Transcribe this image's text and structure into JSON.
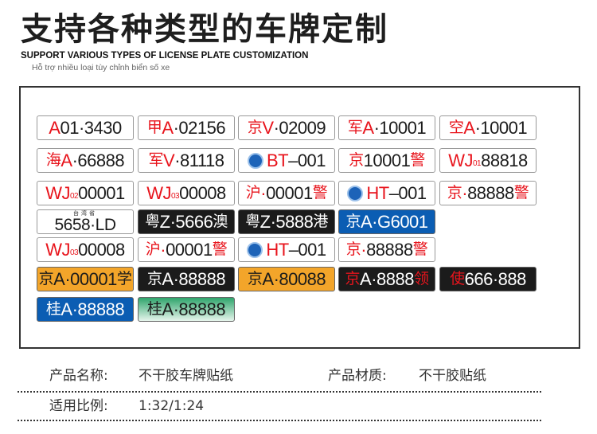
{
  "header": {
    "title": "支持各种类型的车牌定制",
    "subtitle": "SUPPORT VARIOUS TYPES OF LICENSE PLATE CUSTOMIZATION",
    "vietnamese": "Hỗ trợ nhiều loại tùy chỉnh biển số xe"
  },
  "colors": {
    "red": "#e8141c",
    "blue": "#0b5db3",
    "yellow": "#f3a52a",
    "black": "#1b1b1b",
    "white": "#ffffff",
    "green": "#2fa56c"
  },
  "plates": [
    {
      "row": 0,
      "col": 0,
      "bg": "white",
      "fg": "black",
      "seg": [
        [
          "A",
          "r"
        ],
        [
          "01·3430",
          ""
        ]
      ]
    },
    {
      "row": 0,
      "col": 1,
      "bg": "white",
      "fg": "black",
      "seg": [
        [
          "甲",
          "rc"
        ],
        [
          "A",
          "r"
        ],
        [
          "·02156",
          ""
        ]
      ]
    },
    {
      "row": 0,
      "col": 2,
      "bg": "white",
      "fg": "black",
      "seg": [
        [
          "京",
          "rc"
        ],
        [
          "V",
          "r"
        ],
        [
          "·02009",
          ""
        ]
      ]
    },
    {
      "row": 0,
      "col": 3,
      "bg": "white",
      "fg": "black",
      "seg": [
        [
          "军",
          "rc"
        ],
        [
          "A",
          "r"
        ],
        [
          "·10001",
          ""
        ]
      ]
    },
    {
      "row": 0,
      "col": 4,
      "bg": "white",
      "fg": "black",
      "seg": [
        [
          "空",
          "rc"
        ],
        [
          "A",
          "r"
        ],
        [
          "·10001",
          ""
        ]
      ]
    },
    {
      "row": 1,
      "col": 0,
      "bg": "white",
      "fg": "black",
      "seg": [
        [
          "海",
          "rc"
        ],
        [
          "A",
          "r"
        ],
        [
          "·66888",
          ""
        ]
      ]
    },
    {
      "row": 1,
      "col": 1,
      "bg": "white",
      "fg": "black",
      "seg": [
        [
          "军",
          "rc"
        ],
        [
          "V",
          "r"
        ],
        [
          "·81118",
          ""
        ]
      ]
    },
    {
      "row": 1,
      "col": 2,
      "bg": "white",
      "fg": "black",
      "emblem": true,
      "seg": [
        [
          "BT",
          "r"
        ],
        [
          "–001",
          ""
        ]
      ]
    },
    {
      "row": 1,
      "col": 3,
      "bg": "white",
      "fg": "black",
      "seg": [
        [
          "京",
          "rc"
        ],
        [
          "10001",
          ""
        ],
        [
          "警",
          "rc"
        ]
      ]
    },
    {
      "row": 1,
      "col": 4,
      "bg": "white",
      "fg": "black",
      "seg": [
        [
          "WJ",
          "r"
        ],
        [
          "01",
          "rs"
        ],
        [
          "88818",
          ""
        ]
      ]
    },
    {
      "row": 2,
      "col": 0,
      "bg": "white",
      "fg": "black",
      "seg": [
        [
          "WJ",
          "r"
        ],
        [
          "02",
          "rs"
        ],
        [
          "00001",
          ""
        ]
      ]
    },
    {
      "row": 2,
      "col": 1,
      "bg": "white",
      "fg": "black",
      "seg": [
        [
          "WJ",
          "r"
        ],
        [
          "03",
          "rs"
        ],
        [
          "00008",
          ""
        ]
      ]
    },
    {
      "row": 2,
      "col": 2,
      "bg": "white",
      "fg": "black",
      "seg": [
        [
          "沪",
          "rc"
        ],
        [
          "·",
          "r"
        ],
        [
          "00001",
          ""
        ],
        [
          "警",
          "rc"
        ]
      ]
    },
    {
      "row": 2,
      "col": 3,
      "bg": "white",
      "fg": "black",
      "emblem": true,
      "seg": [
        [
          "HT",
          "r"
        ],
        [
          "–001",
          ""
        ]
      ]
    },
    {
      "row": 2,
      "col": 4,
      "bg": "white",
      "fg": "black",
      "seg": [
        [
          "京",
          "rc"
        ],
        [
          "·",
          "r"
        ],
        [
          "88888",
          ""
        ],
        [
          "警",
          "rc"
        ]
      ]
    },
    {
      "row": 3,
      "col": 0,
      "bg": "white",
      "fg": "black",
      "taiwan": true,
      "top": "台湾省",
      "seg": [
        [
          "5658·LD",
          ""
        ]
      ]
    },
    {
      "row": 3,
      "col": 1,
      "bg": "black",
      "fg": "white",
      "seg": [
        [
          "粤",
          "c"
        ],
        [
          "Z·5666",
          ""
        ],
        [
          "澳",
          "c"
        ]
      ]
    },
    {
      "row": 3,
      "col": 2,
      "bg": "black",
      "fg": "white",
      "seg": [
        [
          "粤",
          "c"
        ],
        [
          "Z·5888",
          ""
        ],
        [
          "港",
          "c"
        ]
      ]
    },
    {
      "row": 3,
      "col": 3,
      "bg": "blue",
      "fg": "white",
      "seg": [
        [
          "京",
          "c"
        ],
        [
          "A·G6001",
          ""
        ]
      ]
    },
    {
      "row": 4,
      "col": 0,
      "bg": "white",
      "fg": "black",
      "seg": [
        [
          "WJ",
          "r"
        ],
        [
          "03",
          "rs"
        ],
        [
          "00008",
          ""
        ]
      ]
    },
    {
      "row": 4,
      "col": 1,
      "bg": "white",
      "fg": "black",
      "seg": [
        [
          "沪",
          "rc"
        ],
        [
          "·",
          "r"
        ],
        [
          "00001",
          ""
        ],
        [
          "警",
          "rc"
        ]
      ]
    },
    {
      "row": 4,
      "col": 2,
      "bg": "white",
      "fg": "black",
      "emblem": true,
      "seg": [
        [
          "HT",
          "r"
        ],
        [
          "–001",
          ""
        ]
      ]
    },
    {
      "row": 4,
      "col": 3,
      "bg": "white",
      "fg": "black",
      "seg": [
        [
          "京",
          "rc"
        ],
        [
          "·",
          "r"
        ],
        [
          "88888",
          ""
        ],
        [
          "警",
          "rc"
        ]
      ]
    },
    {
      "row": 5,
      "col": 0,
      "bg": "yellow",
      "fg": "black",
      "seg": [
        [
          "京",
          "c"
        ],
        [
          "A·00001",
          ""
        ],
        [
          "学",
          "c"
        ]
      ]
    },
    {
      "row": 5,
      "col": 1,
      "bg": "black",
      "fg": "white",
      "seg": [
        [
          "京",
          "c"
        ],
        [
          "A·88888",
          ""
        ]
      ]
    },
    {
      "row": 5,
      "col": 2,
      "bg": "yellow",
      "fg": "black",
      "seg": [
        [
          "京",
          "c"
        ],
        [
          "A·80088",
          ""
        ]
      ]
    },
    {
      "row": 5,
      "col": 3,
      "bg": "black",
      "fg": "white",
      "seg": [
        [
          "京",
          "rc"
        ],
        [
          "A·8888",
          ""
        ],
        [
          "领",
          "rc"
        ]
      ]
    },
    {
      "row": 5,
      "col": 4,
      "bg": "black",
      "fg": "white",
      "seg": [
        [
          "使",
          "rc"
        ],
        [
          "666·888",
          ""
        ]
      ]
    },
    {
      "row": 6,
      "col": 0,
      "bg": "blue",
      "fg": "white",
      "seg": [
        [
          "桂",
          "c"
        ],
        [
          "A·88888",
          ""
        ]
      ]
    },
    {
      "row": 6,
      "col": 1,
      "bg": "green",
      "fg": "black",
      "seg": [
        [
          "桂",
          "c"
        ],
        [
          "A·88888",
          ""
        ]
      ]
    }
  ],
  "specs": {
    "name_label": "产品名称:",
    "name_value": "不干胶车牌贴纸",
    "material_label": "产品材质:",
    "material_value": "不干胶贴纸",
    "scale_label": "适用比例:",
    "scale_value": "1:32/1:24"
  }
}
